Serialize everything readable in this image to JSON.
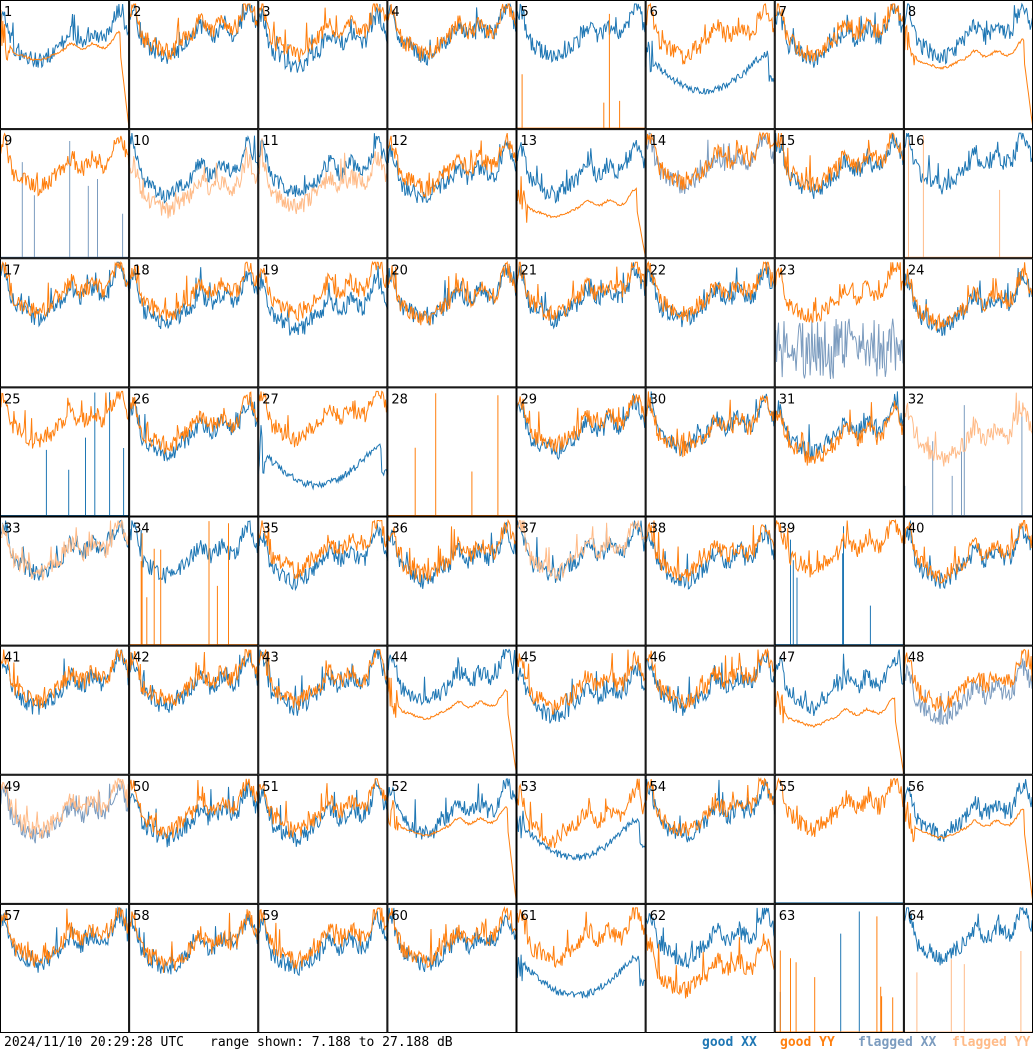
{
  "chart_data": {
    "type": "line",
    "layout": "small-multiples grid",
    "grid": {
      "rows": 8,
      "cols": 8
    },
    "timestamp": "2024/11/10 20:29:28 UTC",
    "range_text": "range shown: 7.188 to 27.188 dB",
    "ylim": [
      7.188,
      27.188
    ],
    "yunit": "dB",
    "legend": [
      {
        "name": "good XX",
        "word1": "good",
        "word2": "XX",
        "color": "#1f77b4"
      },
      {
        "name": "good YY",
        "word1": "good",
        "word2": "YY",
        "color": "#ff7f0e"
      },
      {
        "name": "flagged XX",
        "word1": "flagged",
        "word2": "XX",
        "color": "#7c9cbf"
      },
      {
        "name": "flagged YY",
        "word1": "flagged",
        "word2": "YY",
        "color": "#ffbb88"
      }
    ],
    "panels": [
      {
        "id": "1",
        "xx": "good",
        "yy": "good",
        "xx_shape": "normal",
        "yy_shape": "smooth_dropout",
        "xx_level": 0.58,
        "yy_level": 0.62
      },
      {
        "id": "2",
        "xx": "good",
        "yy": "good",
        "xx_shape": "normal",
        "yy_shape": "normal",
        "xx_level": 0.62,
        "yy_level": 0.66
      },
      {
        "id": "3",
        "xx": "good",
        "yy": "good",
        "xx_shape": "normal",
        "yy_shape": "normal",
        "xx_level": 0.55,
        "yy_level": 0.64
      },
      {
        "id": "4",
        "xx": "good",
        "yy": "good",
        "xx_shape": "normal",
        "yy_shape": "normal",
        "xx_level": 0.62,
        "yy_level": 0.64
      },
      {
        "id": "5",
        "xx": "good",
        "yy": "good",
        "xx_shape": "normal",
        "yy_shape": "spikes",
        "xx_level": 0.62,
        "yy_level": 0.0
      },
      {
        "id": "6",
        "xx": "good",
        "yy": "good",
        "xx_shape": "bowl",
        "yy_shape": "normal",
        "xx_level": 0.45,
        "yy_level": 0.62
      },
      {
        "id": "7",
        "xx": "good",
        "yy": "good",
        "xx_shape": "normal",
        "yy_shape": "normal",
        "xx_level": 0.6,
        "yy_level": 0.64
      },
      {
        "id": "8",
        "xx": "good",
        "yy": "good",
        "xx_shape": "normal",
        "yy_shape": "smooth_dropout",
        "xx_level": 0.62,
        "yy_level": 0.56
      },
      {
        "id": "9",
        "xx": "flagged",
        "yy": "good",
        "xx_shape": "spikes",
        "yy_shape": "normal",
        "xx_level": 0.0,
        "yy_level": 0.6
      },
      {
        "id": "10",
        "xx": "good",
        "yy": "flagged",
        "xx_shape": "normal",
        "yy_shape": "normal",
        "xx_level": 0.55,
        "yy_level": 0.42
      },
      {
        "id": "11",
        "xx": "good",
        "yy": "flagged",
        "xx_shape": "normal",
        "yy_shape": "normal",
        "xx_level": 0.56,
        "yy_level": 0.45
      },
      {
        "id": "12",
        "xx": "good",
        "yy": "good",
        "xx_shape": "normal",
        "yy_shape": "normal",
        "xx_level": 0.52,
        "yy_level": 0.6
      },
      {
        "id": "13",
        "xx": "good",
        "yy": "good",
        "xx_shape": "normal",
        "yy_shape": "smooth_dropout",
        "xx_level": 0.55,
        "yy_level": 0.4
      },
      {
        "id": "14",
        "xx": "flagged",
        "yy": "good",
        "xx_shape": "normal",
        "yy_shape": "normal",
        "xx_level": 0.62,
        "yy_level": 0.65
      },
      {
        "id": "15",
        "xx": "good",
        "yy": "good",
        "xx_shape": "normal",
        "yy_shape": "normal",
        "xx_level": 0.58,
        "yy_level": 0.62
      },
      {
        "id": "16",
        "xx": "good",
        "yy": "flagged",
        "xx_shape": "normal",
        "yy_shape": "spikes",
        "xx_level": 0.62,
        "yy_level": 0.0
      },
      {
        "id": "17",
        "xx": "good",
        "yy": "good",
        "xx_shape": "normal",
        "yy_shape": "normal",
        "xx_level": 0.6,
        "yy_level": 0.64
      },
      {
        "id": "18",
        "xx": "good",
        "yy": "good",
        "xx_shape": "normal",
        "yy_shape": "normal",
        "xx_level": 0.55,
        "yy_level": 0.62
      },
      {
        "id": "19",
        "xx": "good",
        "yy": "good",
        "xx_shape": "normal",
        "yy_shape": "normal",
        "xx_level": 0.5,
        "yy_level": 0.64
      },
      {
        "id": "20",
        "xx": "good",
        "yy": "good",
        "xx_shape": "normal",
        "yy_shape": "normal",
        "xx_level": 0.58,
        "yy_level": 0.58
      },
      {
        "id": "21",
        "xx": "good",
        "yy": "good",
        "xx_shape": "normal",
        "yy_shape": "normal",
        "xx_level": 0.58,
        "yy_level": 0.62
      },
      {
        "id": "22",
        "xx": "good",
        "yy": "good",
        "xx_shape": "normal",
        "yy_shape": "normal",
        "xx_level": 0.58,
        "yy_level": 0.62
      },
      {
        "id": "23",
        "xx": "flagged",
        "yy": "good",
        "xx_shape": "noisy_low",
        "yy_shape": "normal",
        "xx_level": 0.3,
        "yy_level": 0.6
      },
      {
        "id": "24",
        "xx": "good",
        "yy": "good",
        "xx_shape": "normal",
        "yy_shape": "normal",
        "xx_level": 0.52,
        "yy_level": 0.55
      },
      {
        "id": "25",
        "xx": "good",
        "yy": "good",
        "xx_shape": "spikes",
        "yy_shape": "normal",
        "xx_level": 0.0,
        "yy_level": 0.64
      },
      {
        "id": "26",
        "xx": "good",
        "yy": "good",
        "xx_shape": "normal",
        "yy_shape": "normal",
        "xx_level": 0.55,
        "yy_level": 0.6
      },
      {
        "id": "27",
        "xx": "good",
        "yy": "good",
        "xx_shape": "bowl",
        "yy_shape": "normal",
        "xx_level": 0.4,
        "yy_level": 0.66
      },
      {
        "id": "28",
        "xx": "good",
        "yy": "good",
        "xx_shape": "none",
        "yy_shape": "spikes",
        "xx_level": 0.0,
        "yy_level": 0.0
      },
      {
        "id": "29",
        "xx": "good",
        "yy": "good",
        "xx_shape": "normal",
        "yy_shape": "normal",
        "xx_level": 0.56,
        "yy_level": 0.6
      },
      {
        "id": "30",
        "xx": "good",
        "yy": "good",
        "xx_shape": "normal",
        "yy_shape": "normal",
        "xx_level": 0.58,
        "yy_level": 0.58
      },
      {
        "id": "31",
        "xx": "good",
        "yy": "good",
        "xx_shape": "normal",
        "yy_shape": "normal",
        "xx_level": 0.55,
        "yy_level": 0.5
      },
      {
        "id": "32",
        "xx": "flagged",
        "yy": "flagged",
        "xx_shape": "spikes",
        "yy_shape": "normal",
        "xx_level": 0.0,
        "yy_level": 0.5
      },
      {
        "id": "33",
        "xx": "good",
        "yy": "flagged",
        "xx_shape": "normal",
        "yy_shape": "normal",
        "xx_level": 0.62,
        "yy_level": 0.62
      },
      {
        "id": "34",
        "xx": "good",
        "yy": "good",
        "xx_shape": "normal",
        "yy_shape": "spikes",
        "xx_level": 0.6,
        "yy_level": 0.0
      },
      {
        "id": "35",
        "xx": "good",
        "yy": "good",
        "xx_shape": "normal",
        "yy_shape": "normal",
        "xx_level": 0.55,
        "yy_level": 0.64
      },
      {
        "id": "36",
        "xx": "good",
        "yy": "good",
        "xx_shape": "normal",
        "yy_shape": "normal",
        "xx_level": 0.56,
        "yy_level": 0.6
      },
      {
        "id": "37",
        "xx": "good",
        "yy": "flagged",
        "xx_shape": "normal",
        "yy_shape": "normal",
        "xx_level": 0.6,
        "yy_level": 0.62
      },
      {
        "id": "38",
        "xx": "good",
        "yy": "good",
        "xx_shape": "normal",
        "yy_shape": "normal",
        "xx_level": 0.55,
        "yy_level": 0.6
      },
      {
        "id": "39",
        "xx": "good",
        "yy": "good",
        "xx_shape": "spikes",
        "yy_shape": "normal",
        "xx_level": 0.0,
        "yy_level": 0.64
      },
      {
        "id": "40",
        "xx": "good",
        "yy": "good",
        "xx_shape": "normal",
        "yy_shape": "normal",
        "xx_level": 0.56,
        "yy_level": 0.6
      },
      {
        "id": "41",
        "xx": "good",
        "yy": "good",
        "xx_shape": "normal",
        "yy_shape": "normal",
        "xx_level": 0.58,
        "yy_level": 0.62
      },
      {
        "id": "42",
        "xx": "good",
        "yy": "good",
        "xx_shape": "normal",
        "yy_shape": "normal",
        "xx_level": 0.58,
        "yy_level": 0.62
      },
      {
        "id": "43",
        "xx": "good",
        "yy": "good",
        "xx_shape": "normal",
        "yy_shape": "normal",
        "xx_level": 0.58,
        "yy_level": 0.62
      },
      {
        "id": "44",
        "xx": "good",
        "yy": "good",
        "xx_shape": "normal",
        "yy_shape": "smooth_dropout",
        "xx_level": 0.62,
        "yy_level": 0.52
      },
      {
        "id": "45",
        "xx": "good",
        "yy": "good",
        "xx_shape": "normal",
        "yy_shape": "normal",
        "xx_level": 0.5,
        "yy_level": 0.58
      },
      {
        "id": "46",
        "xx": "good",
        "yy": "good",
        "xx_shape": "normal",
        "yy_shape": "normal",
        "xx_level": 0.58,
        "yy_level": 0.62
      },
      {
        "id": "47",
        "xx": "good",
        "yy": "good",
        "xx_shape": "normal",
        "yy_shape": "smooth_dropout",
        "xx_level": 0.58,
        "yy_level": 0.46
      },
      {
        "id": "48",
        "xx": "flagged",
        "yy": "good",
        "xx_shape": "normal",
        "yy_shape": "normal",
        "xx_level": 0.5,
        "yy_level": 0.6
      },
      {
        "id": "49",
        "xx": "flagged",
        "yy": "flagged",
        "xx_shape": "normal",
        "yy_shape": "normal",
        "xx_level": 0.58,
        "yy_level": 0.62
      },
      {
        "id": "50",
        "xx": "good",
        "yy": "good",
        "xx_shape": "normal",
        "yy_shape": "normal",
        "xx_level": 0.56,
        "yy_level": 0.62
      },
      {
        "id": "51",
        "xx": "good",
        "yy": "good",
        "xx_shape": "normal",
        "yy_shape": "normal",
        "xx_level": 0.56,
        "yy_level": 0.62
      },
      {
        "id": "52",
        "xx": "good",
        "yy": "good",
        "xx_shape": "normal",
        "yy_shape": "smooth_dropout",
        "xx_level": 0.6,
        "yy_level": 0.62
      },
      {
        "id": "53",
        "xx": "good",
        "yy": "good",
        "xx_shape": "bowl",
        "yy_shape": "normal",
        "xx_level": 0.52,
        "yy_level": 0.55
      },
      {
        "id": "54",
        "xx": "good",
        "yy": "good",
        "xx_shape": "normal",
        "yy_shape": "normal",
        "xx_level": 0.58,
        "yy_level": 0.62
      },
      {
        "id": "55",
        "xx": "good",
        "yy": "good",
        "xx_shape": "spikes",
        "yy_shape": "normal",
        "xx_level": 0.0,
        "yy_level": 0.64
      },
      {
        "id": "56",
        "xx": "good",
        "yy": "good",
        "xx_shape": "normal",
        "yy_shape": "smooth_dropout",
        "xx_level": 0.6,
        "yy_level": 0.6
      },
      {
        "id": "57",
        "xx": "good",
        "yy": "good",
        "xx_shape": "normal",
        "yy_shape": "normal",
        "xx_level": 0.58,
        "yy_level": 0.62
      },
      {
        "id": "58",
        "xx": "good",
        "yy": "good",
        "xx_shape": "normal",
        "yy_shape": "normal",
        "xx_level": 0.55,
        "yy_level": 0.58
      },
      {
        "id": "59",
        "xx": "good",
        "yy": "good",
        "xx_shape": "normal",
        "yy_shape": "normal",
        "xx_level": 0.55,
        "yy_level": 0.62
      },
      {
        "id": "60",
        "xx": "good",
        "yy": "good",
        "xx_shape": "normal",
        "yy_shape": "normal",
        "xx_level": 0.58,
        "yy_level": 0.62
      },
      {
        "id": "61",
        "xx": "good",
        "yy": "good",
        "xx_shape": "bowl",
        "yy_shape": "normal",
        "xx_level": 0.45,
        "yy_level": 0.62
      },
      {
        "id": "62",
        "xx": "good",
        "yy": "good",
        "xx_shape": "normal",
        "yy_shape": "normal",
        "xx_level": 0.62,
        "yy_level": 0.38
      },
      {
        "id": "63",
        "xx": "good",
        "yy": "good",
        "xx_shape": "spikes",
        "yy_shape": "spikes",
        "xx_level": 0.0,
        "yy_level": 0.0
      },
      {
        "id": "64",
        "xx": "good",
        "yy": "flagged",
        "xx_shape": "normal",
        "yy_shape": "spikes",
        "xx_level": 0.64,
        "yy_level": 0.0
      }
    ]
  }
}
